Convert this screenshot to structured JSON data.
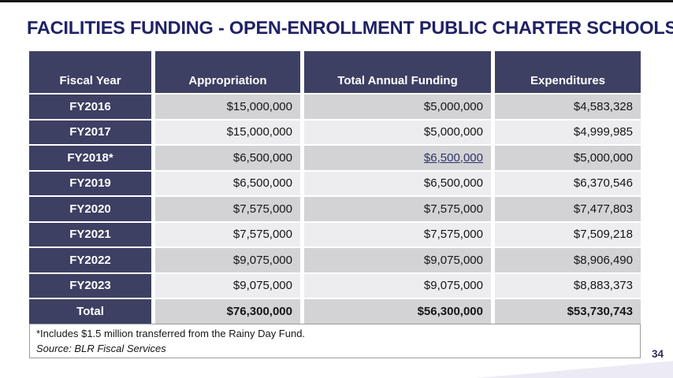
{
  "slide": {
    "title": "FACILITIES FUNDING - OPEN-ENROLLMENT PUBLIC CHARTER SCHOOLS",
    "page_number": "34"
  },
  "table": {
    "columns": [
      "Fiscal Year",
      "Appropriation",
      "Total Annual Funding",
      "Expenditures"
    ],
    "rows": [
      {
        "fiscal_year": "FY2016",
        "appropriation": "$15,000,000",
        "total_annual_funding": "$5,000,000",
        "expenditures": "$4,583,328"
      },
      {
        "fiscal_year": "FY2017",
        "appropriation": "$15,000,000",
        "total_annual_funding": "$5,000,000",
        "expenditures": "$4,999,985"
      },
      {
        "fiscal_year": "FY2018*",
        "appropriation": "$6,500,000",
        "total_annual_funding": "$6,500,000",
        "expenditures": "$5,000,000",
        "funding_is_link": true
      },
      {
        "fiscal_year": "FY2019",
        "appropriation": "$6,500,000",
        "total_annual_funding": "$6,500,000",
        "expenditures": "$6,370,546"
      },
      {
        "fiscal_year": "FY2020",
        "appropriation": "$7,575,000",
        "total_annual_funding": "$7,575,000",
        "expenditures": "$7,477,803"
      },
      {
        "fiscal_year": "FY2021",
        "appropriation": "$7,575,000",
        "total_annual_funding": "$7,575,000",
        "expenditures": "$7,509,218"
      },
      {
        "fiscal_year": "FY2022",
        "appropriation": "$9,075,000",
        "total_annual_funding": "$9,075,000",
        "expenditures": "$8,906,490"
      },
      {
        "fiscal_year": "FY2023",
        "appropriation": "$9,075,000",
        "total_annual_funding": "$9,075,000",
        "expenditures": "$8,883,373"
      }
    ],
    "total_row": {
      "label": "Total",
      "appropriation": "$76,300,000",
      "total_annual_funding": "$56,300,000",
      "expenditures": "$53,730,743"
    }
  },
  "footnotes": {
    "note": "*Includes $1.5 million transferred from the Rainy Day Fund.",
    "source": "Source: BLR Fiscal Services"
  },
  "colors": {
    "header_navy": "#3d4063",
    "title_navy": "#1f2265",
    "row_gray": "#d3d3d6",
    "row_light": "#ededf0",
    "link": "#30336b"
  }
}
